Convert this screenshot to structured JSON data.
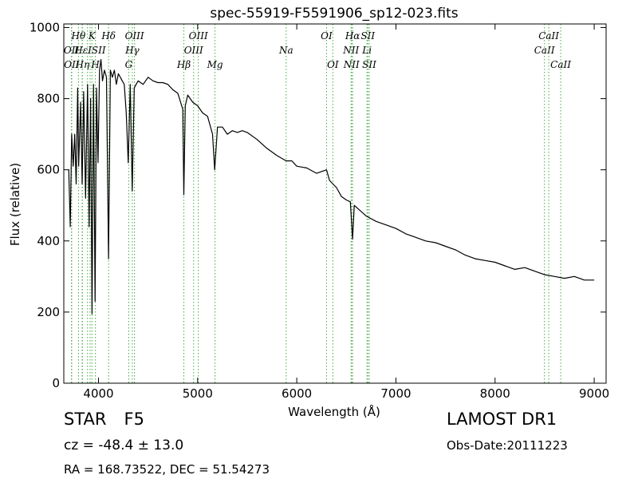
{
  "chart_data": {
    "type": "line",
    "title": "spec-55919-F5591906_sp12-023.fits",
    "xlabel": "Wavelength (Å)",
    "ylabel": "Flux (relative)",
    "xlim": [
      3650,
      9120
    ],
    "ylim": [
      0,
      1010
    ],
    "xticks": [
      4000,
      5000,
      6000,
      7000,
      8000,
      9000
    ],
    "yticks": [
      0,
      200,
      400,
      600,
      800,
      1000
    ],
    "grid": false,
    "line_color": "#000000",
    "marker_line_color": "#44aa44",
    "series": [
      {
        "x": [
          3700,
          3715,
          3730,
          3745,
          3760,
          3775,
          3790,
          3800,
          3820,
          3835,
          3850,
          3870,
          3890,
          3905,
          3920,
          3935,
          3950,
          3965,
          3980,
          3995,
          4010,
          4025,
          4040,
          4060,
          4080,
          4101,
          4120,
          4140,
          4160,
          4180,
          4200,
          4220,
          4240,
          4260,
          4280,
          4300,
          4320,
          4340,
          4360,
          4380,
          4400,
          4450,
          4500,
          4550,
          4600,
          4650,
          4700,
          4750,
          4800,
          4850,
          4861,
          4875,
          4900,
          4950,
          5000,
          5050,
          5100,
          5150,
          5172,
          5200,
          5250,
          5300,
          5350,
          5400,
          5450,
          5500,
          5600,
          5700,
          5800,
          5893,
          5950,
          6000,
          6100,
          6200,
          6300,
          6330,
          6400,
          6450,
          6500,
          6540,
          6563,
          6580,
          6620,
          6700,
          6800,
          6900,
          7000,
          7100,
          7200,
          7300,
          7400,
          7500,
          7600,
          7700,
          7800,
          7900,
          8000,
          8100,
          8200,
          8300,
          8400,
          8500,
          8600,
          8700,
          8800,
          8900,
          9000
        ],
        "y": [
          600,
          440,
          700,
          610,
          700,
          560,
          830,
          610,
          790,
          560,
          820,
          520,
          840,
          440,
          800,
          195,
          840,
          230,
          830,
          620,
          880,
          910,
          850,
          880,
          860,
          350,
          880,
          860,
          880,
          840,
          870,
          860,
          850,
          840,
          760,
          620,
          840,
          540,
          830,
          840,
          850,
          840,
          860,
          850,
          845,
          845,
          840,
          825,
          815,
          770,
          530,
          780,
          810,
          790,
          780,
          760,
          750,
          700,
          600,
          720,
          720,
          700,
          710,
          705,
          710,
          705,
          685,
          660,
          640,
          625,
          625,
          610,
          605,
          590,
          600,
          570,
          550,
          525,
          515,
          510,
          405,
          500,
          490,
          470,
          455,
          445,
          435,
          420,
          410,
          400,
          395,
          385,
          375,
          360,
          350,
          345,
          340,
          330,
          320,
          325,
          315,
          305,
          300,
          295,
          300,
          290,
          290
        ]
      }
    ],
    "lines": [
      {
        "label": "OII",
        "x": 3727,
        "row": 1,
        "show": true
      },
      {
        "label": "OII",
        "x": 3730,
        "row": 2,
        "show": true
      },
      {
        "label": "Hθ",
        "x": 3798,
        "row": 0,
        "show": true
      },
      {
        "label": "Hη",
        "x": 3835,
        "row": 2,
        "show": false
      },
      {
        "label": "Hη",
        "x": 3838,
        "row": 2,
        "show": true
      },
      {
        "label": "Hε",
        "x": 3889,
        "row": 1,
        "show": false
      },
      {
        "label": "K",
        "x": 3934,
        "row": 0,
        "show": true
      },
      {
        "label": "H",
        "x": 3969,
        "row": 2,
        "show": true
      },
      {
        "label": "HεISII",
        "x": 3915,
        "row": 1,
        "show": true
      },
      {
        "label": "Hδ",
        "x": 4102,
        "row": 0,
        "show": true
      },
      {
        "label": "G",
        "x": 4305,
        "row": 2,
        "show": true
      },
      {
        "label": "Hγ",
        "x": 4341,
        "row": 1,
        "show": true
      },
      {
        "label": "OIII",
        "x": 4363,
        "row": 0,
        "show": true
      },
      {
        "label": "Hβ",
        "x": 4861,
        "row": 2,
        "show": true
      },
      {
        "label": "OIII",
        "x": 4959,
        "row": 1,
        "show": true
      },
      {
        "label": "OIII",
        "x": 5007,
        "row": 0,
        "show": true
      },
      {
        "label": "Mg",
        "x": 5175,
        "row": 2,
        "show": true
      },
      {
        "label": "Na",
        "x": 5893,
        "row": 1,
        "show": true
      },
      {
        "label": "OI",
        "x": 6300,
        "row": 0,
        "show": true
      },
      {
        "label": "OI",
        "x": 6364,
        "row": 2,
        "show": true
      },
      {
        "label": "NII",
        "x": 6548,
        "row": 1,
        "show": true
      },
      {
        "label": "NII",
        "x": 6552,
        "row": 2,
        "show": true
      },
      {
        "label": "Hα",
        "x": 6563,
        "row": 0,
        "show": true
      },
      {
        "label": "SII",
        "x": 6717,
        "row": 0,
        "show": true
      },
      {
        "label": "Li",
        "x": 6708,
        "row": 1,
        "show": true
      },
      {
        "label": "SII",
        "x": 6731,
        "row": 2,
        "show": true
      },
      {
        "label": "CaII",
        "x": 8498,
        "row": 1,
        "show": true
      },
      {
        "label": "CaII",
        "x": 8542,
        "row": 0,
        "show": true
      },
      {
        "label": "CaII",
        "x": 8662,
        "row": 2,
        "show": true
      }
    ]
  },
  "info": {
    "class": "STAR",
    "subclass": "F5",
    "cz": "cz = -48.4 ± 13.0",
    "radec": "RA = 168.73522, DEC = 51.54273",
    "survey": "LAMOST DR1",
    "obs_date": "Obs-Date:20111223"
  }
}
